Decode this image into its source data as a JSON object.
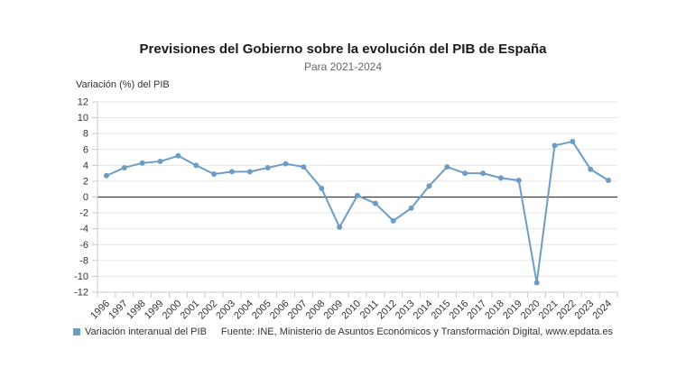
{
  "chart": {
    "title": "Previsiones del Gobierno sobre la evolución del PIB de España",
    "subtitle": "Para 2021-2024",
    "axis_title": "Variación (%) del PIB",
    "legend_label": "Variación interanual del PIB",
    "source_prefix": "Fuente: INE, Ministerio de Asuntos Económicos y Transformación Digital,",
    "source_link": "www.epdata.es",
    "accent_color": "#6d9dc5",
    "grid_color": "#e6e6e6",
    "axis_color": "#c7ccd1",
    "zero_line_color": "#3c3c3c",
    "tick_label_color": "#333333"
  },
  "chart_data": {
    "type": "line",
    "title": "Previsiones del Gobierno sobre la evolución del PIB de España",
    "subtitle": "Para 2021-2024",
    "xlabel": "",
    "ylabel": "Variación (%) del PIB",
    "ylim": [
      -12,
      12
    ],
    "ytick_step": 2,
    "grid": true,
    "legend_position": "bottom",
    "categories": [
      "1996",
      "1997",
      "1998",
      "1999",
      "2000",
      "2001",
      "2002",
      "2003",
      "2004",
      "2005",
      "2006",
      "2007",
      "2008",
      "2009",
      "2010",
      "2011",
      "2012",
      "2013",
      "2014",
      "2015",
      "2016",
      "2017",
      "2018",
      "2019",
      "2020",
      "2021",
      "2022",
      "2023",
      "2024"
    ],
    "series": [
      {
        "name": "Variación interanual del PIB",
        "values": [
          2.7,
          3.7,
          4.3,
          4.5,
          5.2,
          4.0,
          2.9,
          3.2,
          3.2,
          3.7,
          4.2,
          3.8,
          1.1,
          -3.8,
          0.2,
          -0.8,
          -3.0,
          -1.4,
          1.4,
          3.8,
          3.0,
          3.0,
          2.4,
          2.1,
          -10.8,
          6.5,
          7.0,
          3.5,
          2.1
        ]
      }
    ]
  }
}
